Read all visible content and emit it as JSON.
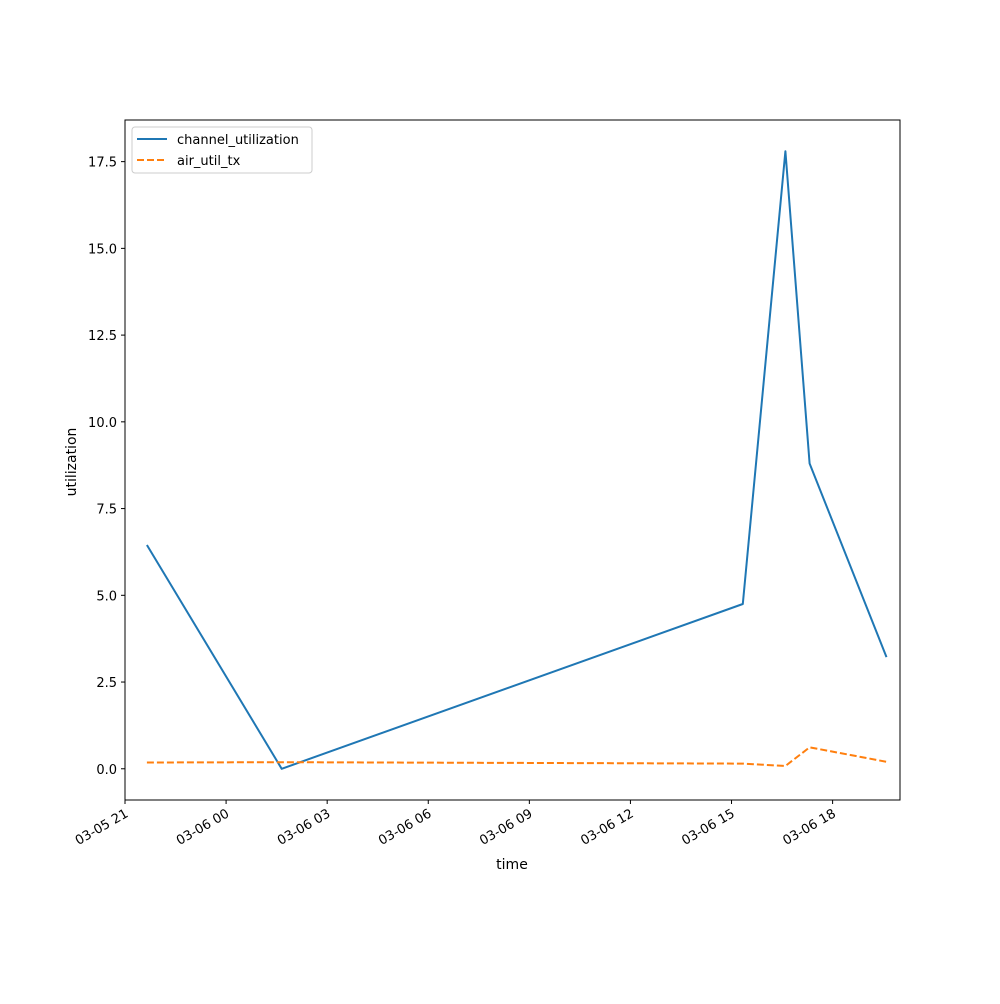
{
  "chart_data": {
    "type": "line",
    "title": "",
    "xlabel": "time",
    "ylabel": "utilization",
    "xlim": [
      "2024-03-05 21:00",
      "2024-03-06 20:00"
    ],
    "ylim": [
      -0.9,
      18.7
    ],
    "yticks": [
      0.0,
      2.5,
      5.0,
      7.5,
      10.0,
      12.5,
      15.0,
      17.5
    ],
    "ytick_labels": [
      "0.0",
      "2.5",
      "5.0",
      "7.5",
      "10.0",
      "12.5",
      "15.0",
      "17.5"
    ],
    "xticks": [
      "2024-03-05 21:00",
      "2024-03-06 00:00",
      "2024-03-06 03:00",
      "2024-03-06 06:00",
      "2024-03-06 09:00",
      "2024-03-06 12:00",
      "2024-03-06 15:00",
      "2024-03-06 18:00"
    ],
    "xtick_labels": [
      "03-05 21",
      "03-06 00",
      "03-06 03",
      "03-06 06",
      "03-06 09",
      "03-06 12",
      "03-06 15",
      "03-06 18"
    ],
    "grid": false,
    "legend_position": "upper-left",
    "series": [
      {
        "name": "channel_utilization",
        "color": "#1f77b4",
        "style": "solid",
        "x": [
          "2024-03-05 21:39",
          "2024-03-06 01:39",
          "2024-03-06 15:20",
          "2024-03-06 16:36",
          "2024-03-06 17:19",
          "2024-03-06 19:36"
        ],
        "y": [
          6.45,
          0.0,
          4.75,
          17.8,
          8.8,
          3.22
        ]
      },
      {
        "name": "air_util_tx",
        "color": "#ff7f0e",
        "style": "dashed",
        "x": [
          "2024-03-05 21:39",
          "2024-03-06 01:39",
          "2024-03-06 15:20",
          "2024-03-06 16:36",
          "2024-03-06 17:19",
          "2024-03-06 19:36"
        ],
        "y": [
          0.18,
          0.19,
          0.15,
          0.08,
          0.62,
          0.2
        ]
      }
    ]
  }
}
